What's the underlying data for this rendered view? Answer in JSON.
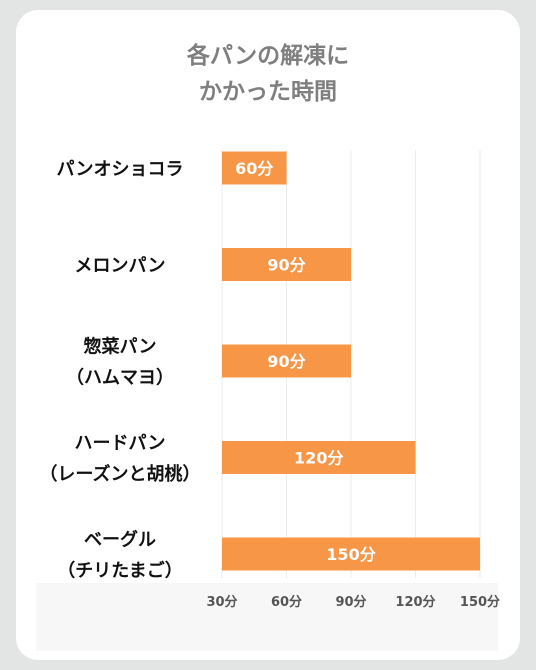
{
  "chart_data": {
    "type": "bar",
    "orientation": "horizontal",
    "title_lines": [
      "各パンの解凍に",
      "かかった時間"
    ],
    "categories": [
      [
        "パンオショコラ"
      ],
      [
        "メロンパン"
      ],
      [
        "惣菜パン",
        "（ハムマヨ）"
      ],
      [
        "ハードパン",
        "（レーズンと胡桃）"
      ],
      [
        "ベーグル",
        "（チリたまご）"
      ]
    ],
    "values": [
      60,
      90,
      90,
      120,
      150
    ],
    "data_labels": [
      "60分",
      "90分",
      "90分",
      "120分",
      "150分"
    ],
    "x_ticks": [
      30,
      60,
      90,
      120,
      150
    ],
    "x_tick_labels": [
      "30分",
      "60分",
      "90分",
      "120分",
      "150分"
    ],
    "xlim": [
      30,
      150
    ],
    "grid": true,
    "bar_color": "#f79646",
    "grid_color": "#ebebeb"
  }
}
